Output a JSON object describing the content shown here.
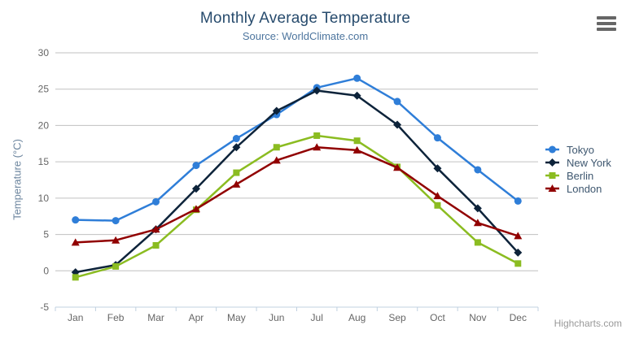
{
  "chart_data": {
    "type": "line",
    "title": "Monthly Average Temperature",
    "subtitle": "Source: WorldClimate.com",
    "categories": [
      "Jan",
      "Feb",
      "Mar",
      "Apr",
      "May",
      "Jun",
      "Jul",
      "Aug",
      "Sep",
      "Oct",
      "Nov",
      "Dec"
    ],
    "xlabel": "",
    "ylabel": "Temperature (°C)",
    "ylim": [
      -5,
      30
    ],
    "ytick_interval": 5,
    "grid": true,
    "legend_position": "right-middle-vertical",
    "series": [
      {
        "name": "Tokyo",
        "color": "#2f7ed8",
        "marker": "circle",
        "values": [
          7.0,
          6.9,
          9.5,
          14.5,
          18.2,
          21.5,
          25.2,
          26.5,
          23.3,
          18.3,
          13.9,
          9.6
        ]
      },
      {
        "name": "New York",
        "color": "#0d233a",
        "marker": "diamond",
        "values": [
          -0.2,
          0.8,
          5.7,
          11.3,
          17.0,
          22.0,
          24.8,
          24.1,
          20.1,
          14.1,
          8.6,
          2.5
        ]
      },
      {
        "name": "Berlin",
        "color": "#8bbc21",
        "marker": "square",
        "values": [
          -0.9,
          0.6,
          3.5,
          8.4,
          13.5,
          17.0,
          18.6,
          17.9,
          14.3,
          9.0,
          3.9,
          1.0
        ]
      },
      {
        "name": "London",
        "color": "#910000",
        "marker": "triangle",
        "values": [
          3.9,
          4.2,
          5.7,
          8.5,
          11.9,
          15.2,
          17.0,
          16.6,
          14.2,
          10.3,
          6.6,
          4.8
        ]
      }
    ],
    "credits": "Highcharts.com"
  },
  "icons": {
    "export_menu": "hamburger-menu-icon"
  },
  "theme_colors": {
    "title_text": "#274b6d",
    "subtitle_text": "#4d759e",
    "axis_title_text": "#6d869f",
    "axis_label_text": "#666666",
    "gridline": "#c0c0c0",
    "axis_line": "#c0d0e0",
    "legend_text": "#3e576f",
    "credits_text": "#999999"
  }
}
